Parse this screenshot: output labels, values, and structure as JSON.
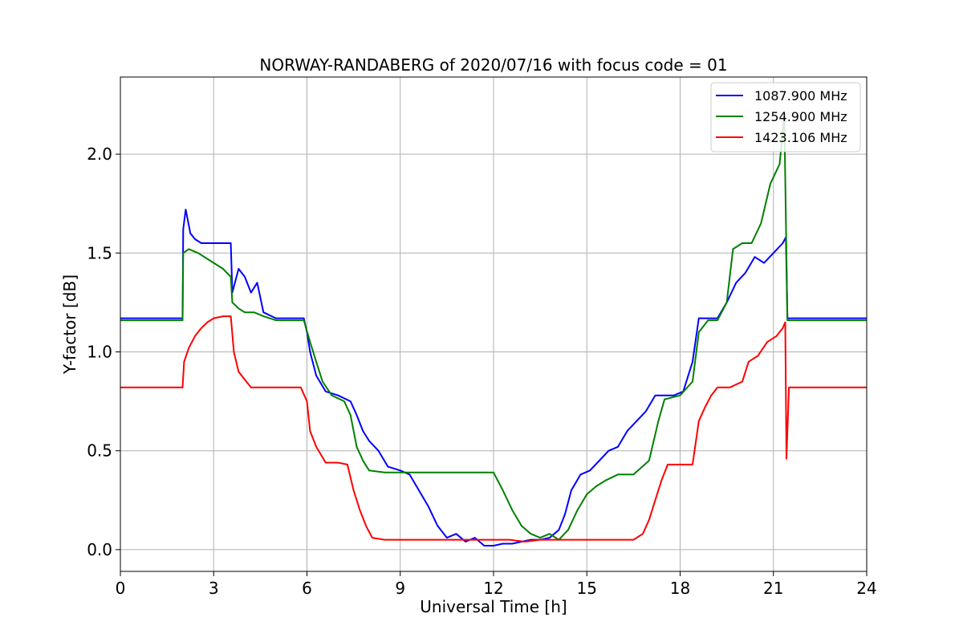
{
  "chart_data": {
    "type": "line",
    "title": "NORWAY-RANDABERG of 2020/07/16 with focus code = 01",
    "xlabel": "Universal Time [h]",
    "ylabel": "Y-factor [dB]",
    "xlim": [
      0,
      24
    ],
    "ylim": [
      -0.11,
      2.39
    ],
    "xticks": [
      0,
      3,
      6,
      9,
      12,
      15,
      18,
      21,
      24
    ],
    "xtick_labels": [
      "0",
      "3",
      "6",
      "9",
      "12",
      "15",
      "18",
      "21",
      "24"
    ],
    "yticks": [
      0.0,
      0.5,
      1.0,
      1.5,
      2.0
    ],
    "ytick_labels": [
      "0.0",
      "0.5",
      "1.0",
      "1.5",
      "2.0"
    ],
    "grid": true,
    "legend_position": "top-right",
    "series": [
      {
        "name": "1087.900 MHz",
        "color": "#0000ff",
        "x": [
          0,
          1.0,
          2.0,
          2.02,
          2.1,
          2.25,
          2.4,
          2.6,
          3.0,
          3.3,
          3.55,
          3.6,
          3.8,
          4.0,
          4.2,
          4.4,
          4.6,
          5.0,
          5.5,
          5.9,
          6.0,
          6.1,
          6.3,
          6.6,
          7.0,
          7.4,
          7.6,
          7.8,
          8.0,
          8.3,
          8.6,
          9.0,
          9.3,
          9.6,
          9.9,
          10.2,
          10.5,
          10.8,
          11.1,
          11.4,
          11.7,
          12.0,
          12.3,
          12.6,
          12.9,
          13.2,
          13.5,
          13.8,
          14.1,
          14.3,
          14.5,
          14.8,
          15.1,
          15.4,
          15.7,
          16.0,
          16.3,
          16.6,
          16.9,
          17.2,
          17.5,
          17.8,
          18.1,
          18.4,
          18.6,
          18.9,
          19.2,
          19.5,
          19.8,
          20.1,
          20.4,
          20.7,
          21.0,
          21.3,
          21.4,
          21.45,
          22.0,
          23.0,
          24.0
        ],
        "y": [
          1.17,
          1.17,
          1.17,
          1.62,
          1.72,
          1.6,
          1.57,
          1.55,
          1.55,
          1.55,
          1.55,
          1.3,
          1.42,
          1.38,
          1.3,
          1.35,
          1.2,
          1.17,
          1.17,
          1.17,
          1.1,
          1.0,
          0.88,
          0.8,
          0.78,
          0.75,
          0.68,
          0.6,
          0.55,
          0.5,
          0.42,
          0.4,
          0.38,
          0.3,
          0.22,
          0.12,
          0.06,
          0.08,
          0.04,
          0.06,
          0.02,
          0.02,
          0.03,
          0.03,
          0.04,
          0.05,
          0.05,
          0.06,
          0.1,
          0.18,
          0.3,
          0.38,
          0.4,
          0.45,
          0.5,
          0.52,
          0.6,
          0.65,
          0.7,
          0.78,
          0.78,
          0.78,
          0.8,
          0.95,
          1.17,
          1.17,
          1.17,
          1.25,
          1.35,
          1.4,
          1.48,
          1.45,
          1.5,
          1.55,
          1.58,
          1.17,
          1.17,
          1.17,
          1.17
        ]
      },
      {
        "name": "1254.900 MHz",
        "color": "#008000",
        "x": [
          0,
          1.0,
          2.0,
          2.02,
          2.2,
          2.5,
          3.0,
          3.3,
          3.55,
          3.6,
          3.8,
          4.0,
          4.3,
          4.6,
          5.0,
          5.5,
          5.9,
          6.1,
          6.3,
          6.5,
          6.8,
          7.2,
          7.4,
          7.6,
          7.8,
          8.0,
          8.5,
          9.0,
          10.0,
          11.0,
          11.5,
          12.0,
          12.3,
          12.6,
          12.9,
          13.2,
          13.5,
          13.8,
          14.1,
          14.4,
          14.7,
          15.0,
          15.3,
          15.6,
          16.0,
          16.5,
          17.0,
          17.3,
          17.5,
          18.0,
          18.4,
          18.6,
          18.9,
          19.2,
          19.5,
          19.7,
          20.0,
          20.3,
          20.6,
          20.9,
          21.2,
          21.35,
          21.45,
          22.0,
          23.0,
          24.0
        ],
        "y": [
          1.16,
          1.16,
          1.16,
          1.5,
          1.52,
          1.5,
          1.45,
          1.42,
          1.38,
          1.25,
          1.22,
          1.2,
          1.2,
          1.18,
          1.16,
          1.16,
          1.16,
          1.05,
          0.95,
          0.85,
          0.78,
          0.75,
          0.68,
          0.52,
          0.45,
          0.4,
          0.39,
          0.39,
          0.39,
          0.39,
          0.39,
          0.39,
          0.3,
          0.2,
          0.12,
          0.08,
          0.06,
          0.08,
          0.05,
          0.1,
          0.2,
          0.28,
          0.32,
          0.35,
          0.38,
          0.38,
          0.45,
          0.65,
          0.76,
          0.78,
          0.85,
          1.1,
          1.16,
          1.16,
          1.25,
          1.52,
          1.55,
          1.55,
          1.65,
          1.85,
          1.95,
          2.2,
          1.16,
          1.16,
          1.16,
          1.16
        ]
      },
      {
        "name": "1423.106 MHz",
        "color": "#ff0000",
        "x": [
          0,
          1.0,
          2.0,
          2.05,
          2.2,
          2.4,
          2.6,
          2.8,
          3.0,
          3.3,
          3.55,
          3.65,
          3.8,
          4.0,
          4.2,
          4.6,
          5.0,
          5.5,
          5.8,
          6.0,
          6.1,
          6.3,
          6.6,
          7.0,
          7.3,
          7.5,
          7.7,
          7.9,
          8.1,
          8.5,
          9.0,
          10.0,
          11.0,
          12.0,
          12.5,
          13.0,
          13.5,
          14.0,
          14.5,
          15.0,
          15.5,
          16.0,
          16.5,
          16.8,
          17.0,
          17.2,
          17.4,
          17.6,
          18.0,
          18.4,
          18.6,
          18.8,
          19.0,
          19.2,
          19.6,
          20.0,
          20.2,
          20.5,
          20.8,
          21.1,
          21.3,
          21.38,
          21.42,
          21.5,
          22.0,
          23.0,
          24.0
        ],
        "y": [
          0.82,
          0.82,
          0.82,
          0.95,
          1.02,
          1.08,
          1.12,
          1.15,
          1.17,
          1.18,
          1.18,
          1.0,
          0.9,
          0.86,
          0.82,
          0.82,
          0.82,
          0.82,
          0.82,
          0.75,
          0.6,
          0.52,
          0.44,
          0.44,
          0.43,
          0.3,
          0.2,
          0.12,
          0.06,
          0.05,
          0.05,
          0.05,
          0.05,
          0.05,
          0.05,
          0.04,
          0.05,
          0.05,
          0.05,
          0.05,
          0.05,
          0.05,
          0.05,
          0.08,
          0.15,
          0.25,
          0.35,
          0.43,
          0.43,
          0.43,
          0.65,
          0.72,
          0.78,
          0.82,
          0.82,
          0.85,
          0.95,
          0.98,
          1.05,
          1.08,
          1.12,
          1.15,
          0.46,
          0.82,
          0.82,
          0.82,
          0.82
        ]
      }
    ]
  }
}
